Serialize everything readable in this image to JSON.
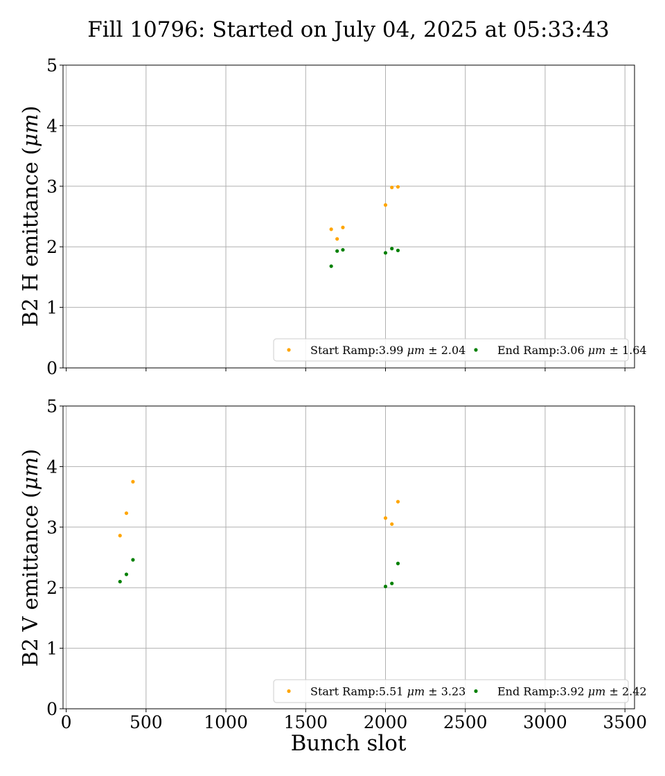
{
  "title": "Fill 10796: Started on July 04, 2025 at 05:33:43",
  "colors": {
    "start": "#FFA500",
    "end": "#008000",
    "grid": "#b0b0b0"
  },
  "chart_data": [
    {
      "type": "scatter",
      "ylabel": "B2 H emittance (μm)",
      "ylabel_text": "B2 H emittance (",
      "ylabel_unit": "μm",
      "ylabel_close": ")",
      "xlim": [
        -20,
        3560
      ],
      "ylim": [
        0,
        5
      ],
      "xticks": [
        0,
        500,
        1000,
        1500,
        2000,
        2500,
        3000,
        3500
      ],
      "yticks": [
        0,
        1,
        2,
        3,
        4,
        5
      ],
      "ytick_labels": [
        "0",
        "1",
        "2",
        "3",
        "4",
        "5"
      ],
      "grid": true,
      "legend_position": "lower-right",
      "series": [
        {
          "name": "Start Ramp:3.99 μm ± 2.04",
          "label_prefix": "Start Ramp:3.99 ",
          "label_unit": "μm",
          "label_pm": " ± ",
          "label_err": "2.04",
          "color": "#FFA500",
          "x": [
            1660,
            1697,
            1733,
            2000,
            2040,
            2078
          ],
          "y": [
            2.29,
            2.13,
            2.32,
            2.69,
            2.98,
            2.99
          ]
        },
        {
          "name": "End Ramp:3.06 μm ± 1.64",
          "label_prefix": "End Ramp:3.06 ",
          "label_unit": "μm",
          "label_pm": " ± ",
          "label_err": "1.64",
          "color": "#008000",
          "x": [
            1660,
            1697,
            1733,
            2000,
            2040,
            2078
          ],
          "y": [
            1.68,
            1.93,
            1.95,
            1.9,
            1.97,
            1.94
          ]
        }
      ]
    },
    {
      "type": "scatter",
      "ylabel": "B2 V emittance (μm)",
      "ylabel_text": "B2 V emittance (",
      "ylabel_unit": "μm",
      "ylabel_close": ")",
      "xlabel": "Bunch slot",
      "xlim": [
        -20,
        3560
      ],
      "ylim": [
        0,
        5
      ],
      "xticks": [
        0,
        500,
        1000,
        1500,
        2000,
        2500,
        3000,
        3500
      ],
      "xtick_labels": [
        "0",
        "500",
        "1000",
        "1500",
        "2000",
        "2500",
        "3000",
        "3500"
      ],
      "yticks": [
        0,
        1,
        2,
        3,
        4,
        5
      ],
      "ytick_labels": [
        "0",
        "1",
        "2",
        "3",
        "4",
        "5"
      ],
      "grid": true,
      "legend_position": "lower-right",
      "series": [
        {
          "name": "Start Ramp:5.51 μm ± 3.23",
          "label_prefix": "Start Ramp:5.51 ",
          "label_unit": "μm",
          "label_pm": " ± ",
          "label_err": "3.23",
          "color": "#FFA500",
          "x": [
            337,
            377,
            418,
            2000,
            2040,
            2078
          ],
          "y": [
            2.86,
            3.23,
            3.75,
            3.15,
            3.05,
            3.42
          ]
        },
        {
          "name": "End Ramp:3.92 μm ± 2.42",
          "label_prefix": "End Ramp:3.92 ",
          "label_unit": "μm",
          "label_pm": " ± ",
          "label_err": "2.42",
          "color": "#008000",
          "x": [
            337,
            377,
            418,
            2000,
            2040,
            2078
          ],
          "y": [
            2.1,
            2.22,
            2.46,
            2.02,
            2.07,
            2.4
          ]
        }
      ]
    }
  ]
}
